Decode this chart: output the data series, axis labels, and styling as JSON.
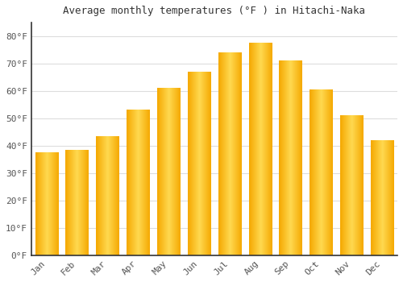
{
  "title": "Average monthly temperatures (°F ) in Hitachi-Naka",
  "months": [
    "Jan",
    "Feb",
    "Mar",
    "Apr",
    "May",
    "Jun",
    "Jul",
    "Aug",
    "Sep",
    "Oct",
    "Nov",
    "Dec"
  ],
  "values": [
    37.5,
    38.5,
    43.5,
    53.0,
    61.0,
    67.0,
    74.0,
    77.5,
    71.0,
    60.5,
    51.0,
    42.0
  ],
  "bar_color_dark": "#F5A800",
  "bar_color_light": "#FFD966",
  "background_color": "#FFFFFF",
  "plot_bg_color": "#FFFFFF",
  "grid_color": "#DDDDDD",
  "tick_label_color": "#555555",
  "title_color": "#333333",
  "ylim": [
    0,
    85
  ],
  "yticks": [
    0,
    10,
    20,
    30,
    40,
    50,
    60,
    70,
    80
  ],
  "ytick_labels": [
    "0°F",
    "10°F",
    "20°F",
    "30°F",
    "40°F",
    "50°F",
    "60°F",
    "70°F",
    "80°F"
  ]
}
